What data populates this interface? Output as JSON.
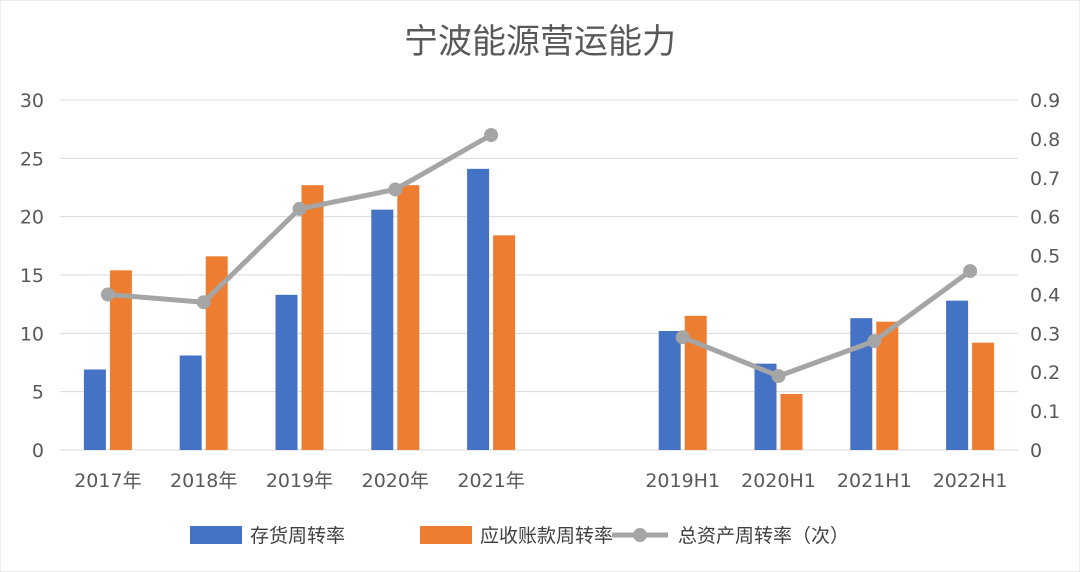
{
  "chart_data": {
    "type": "bar",
    "title": "宁波能源营运能力",
    "categories": [
      "2017年",
      "2018年",
      "2019年",
      "2020年",
      "2021年",
      "",
      "2019H1",
      "2020H1",
      "2021H1",
      "2022H1"
    ],
    "series": [
      {
        "name": "存货周转率",
        "type": "bar",
        "axis": "left",
        "color": "#4472C4",
        "values": [
          6.9,
          8.1,
          13.3,
          20.6,
          24.1,
          null,
          10.2,
          7.4,
          11.3,
          12.8
        ]
      },
      {
        "name": "应收账款周转率",
        "type": "bar",
        "axis": "left",
        "color": "#ED7D31",
        "values": [
          15.4,
          16.6,
          22.7,
          22.7,
          18.4,
          null,
          11.5,
          4.8,
          11.0,
          9.2
        ]
      },
      {
        "name": "总资产周转率（次）",
        "type": "line",
        "axis": "right",
        "color": "#A5A5A5",
        "values": [
          0.4,
          0.38,
          0.62,
          0.67,
          0.81,
          null,
          0.29,
          0.19,
          0.28,
          0.46
        ]
      }
    ],
    "left_axis": {
      "ylim": [
        0,
        30
      ],
      "ticks": [
        "0",
        "5",
        "10",
        "15",
        "20",
        "25",
        "30"
      ],
      "tick_values": [
        0,
        5,
        10,
        15,
        20,
        25,
        30
      ]
    },
    "right_axis": {
      "ylim": [
        0,
        0.9
      ],
      "ticks": [
        "0",
        "0.1",
        "0.2",
        "0.3",
        "0.4",
        "0.5",
        "0.6",
        "0.7",
        "0.8",
        "0.9"
      ],
      "tick_values": [
        0,
        0.1,
        0.2,
        0.3,
        0.4,
        0.5,
        0.6,
        0.7,
        0.8,
        0.9
      ]
    },
    "grid": true,
    "legend_position": "bottom"
  }
}
